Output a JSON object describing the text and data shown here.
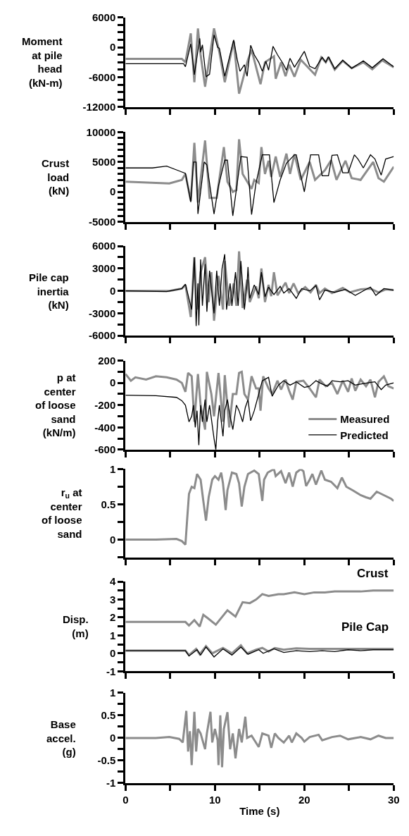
{
  "chart_data": [
    {
      "type": "line",
      "ylabel": "Moment at pile head (kN-m)",
      "xlim": [
        0,
        30
      ],
      "xticks": [
        0,
        {
          "value": 5,
          "label": null
        },
        10,
        {
          "value": 15,
          "label": null
        },
        20,
        {
          "value": 25,
          "label": null
        },
        30
      ],
      "ylim": [
        -12000,
        6000
      ],
      "yticks": [
        6000,
        {
          "value": 4500,
          "label": null
        },
        {
          "value": 3000,
          "label": null
        },
        {
          "value": 1500,
          "label": null
        },
        0,
        {
          "value": -1500,
          "label": null
        },
        {
          "value": -3000,
          "label": null
        },
        {
          "value": -4500,
          "label": null
        },
        -6000,
        {
          "value": -7500,
          "label": null
        },
        {
          "value": -9000,
          "label": null
        },
        {
          "value": -10500,
          "label": null
        },
        -12000
      ],
      "tick_labels": "y",
      "series": [
        {
          "color": "#8c8c8c",
          "x": [
            0,
            6.3,
            6.7,
            7.3,
            7.7,
            8.1,
            8.4,
            8.9,
            9.9,
            10.5,
            11.1,
            12.1,
            12.7,
            13.7,
            14.1,
            15.1,
            15.6,
            16.6,
            16.8,
            17.4,
            17.9,
            18.3,
            18.9,
            19.6,
            21.2,
            21.9,
            22.4,
            22.7,
            23.4,
            24.3,
            25.3,
            26.6,
            27.6,
            28.7,
            30
          ],
          "values": [
            -2300,
            -2300,
            -3000,
            2800,
            -7000,
            3800,
            -1500,
            -7900,
            3800,
            -1000,
            -7000,
            1200,
            -9300,
            -2500,
            -500,
            -7400,
            -3000,
            -1800,
            -6300,
            -3000,
            -5800,
            -3500,
            -5900,
            -2500,
            -5500,
            -2000,
            -3000,
            -2000,
            -4500,
            -2700,
            -4200,
            -3000,
            -4400,
            -2600,
            -4000
          ]
        },
        {
          "color": "#000000",
          "x": [
            0,
            6.5,
            6.7,
            7.3,
            7.7,
            8.3,
            8.4,
            8.6,
            9.0,
            9.4,
            9.9,
            10.3,
            10.5,
            11.1,
            12.1,
            12.5,
            12.8,
            13.3,
            13.6,
            14.0,
            14.4,
            14.9,
            15.3,
            15.7,
            16.0,
            16.5,
            17.0,
            17.6,
            18.0,
            18.4,
            18.9,
            20.0,
            20.6,
            21.2,
            22.0,
            22.4,
            22.7,
            23.4,
            24.3,
            25.3,
            26.6,
            27.6,
            28.8,
            30
          ],
          "values": [
            -3300,
            -3300,
            -3900,
            700,
            -5500,
            1800,
            -1000,
            500,
            -5900,
            -5400,
            2500,
            0,
            -200,
            -5800,
            1500,
            -2500,
            -4800,
            -3500,
            -5800,
            400,
            -1500,
            -3000,
            -4800,
            -2800,
            -4600,
            200,
            -1500,
            -3200,
            -4600,
            -2200,
            -4000,
            -800,
            -3800,
            -4300,
            -2000,
            -3000,
            -1900,
            -4300,
            -2600,
            -4200,
            -2700,
            -4100,
            -2300,
            -3900
          ]
        }
      ]
    },
    {
      "type": "line",
      "ylabel": "Crust load (kN)",
      "xlim": [
        0,
        30
      ],
      "xticks": [
        0,
        {
          "value": 5,
          "label": null
        },
        10,
        {
          "value": 15,
          "label": null
        },
        20,
        {
          "value": 25,
          "label": null
        },
        30
      ],
      "ylim": [
        -5000,
        10000
      ],
      "yticks": [
        10000,
        {
          "value": 9000,
          "label": null
        },
        {
          "value": 8000,
          "label": null
        },
        {
          "value": 7000,
          "label": null
        },
        {
          "value": 6000,
          "label": null
        },
        5000,
        {
          "value": 4000,
          "label": null
        },
        {
          "value": 3000,
          "label": null
        },
        {
          "value": 2000,
          "label": null
        },
        {
          "value": 1000,
          "label": null
        },
        0,
        {
          "value": -1000,
          "label": null
        },
        {
          "value": -2000,
          "label": null
        },
        {
          "value": -3000,
          "label": null
        },
        {
          "value": -4000,
          "label": null
        },
        -5000
      ],
      "tick_labels": "y",
      "series": [
        {
          "color": "#8c8c8c",
          "x": [
            0,
            4.9,
            6.3,
            6.7,
            7.3,
            7.7,
            8.1,
            8.9,
            9.4,
            10.2,
            11.0,
            11.4,
            12.0,
            12.4,
            12.7,
            13.1,
            14.1,
            14.4,
            14.9,
            15.2,
            15.6,
            16.0,
            16.3,
            16.8,
            17.3,
            18.0,
            18.4,
            18.9,
            19.6,
            20.6,
            21.2,
            22.3,
            23.0,
            23.6,
            24.6,
            25.3,
            26.3,
            27.7,
            28.3,
            28.9,
            30
          ],
          "values": [
            1700,
            1400,
            2000,
            3000,
            -1500,
            8200,
            -1800,
            8600,
            -1000,
            -1000,
            7500,
            1700,
            0,
            300,
            8800,
            3000,
            500,
            2000,
            1500,
            7500,
            3000,
            5200,
            2500,
            5900,
            2500,
            6400,
            3000,
            6300,
            2000,
            5000,
            2000,
            3600,
            5300,
            2000,
            5200,
            2300,
            2000,
            5000,
            2300,
            1700,
            4200
          ]
        },
        {
          "color": "#000000",
          "x": [
            0,
            3.0,
            4.6,
            6.0,
            6.7,
            7.3,
            7.6,
            7.9,
            8.1,
            8.8,
            9.1,
            9.9,
            10.4,
            11.1,
            11.4,
            12.0,
            12.9,
            13.6,
            14.1,
            14.6,
            15.3,
            16.1,
            16.6,
            17.3,
            18.0,
            18.9,
            19.1,
            20.0,
            20.7,
            21.6,
            22.0,
            22.7,
            23.1,
            23.7,
            24.3,
            24.9,
            25.6,
            26.0,
            26.6,
            27.4,
            27.9,
            28.6,
            29.1,
            30
          ],
          "values": [
            4000,
            4000,
            4300,
            3500,
            3100,
            -1700,
            5000,
            5000,
            -3700,
            5000,
            4500,
            -3700,
            1000,
            5300,
            5300,
            -4000,
            5900,
            5800,
            -3800,
            1500,
            6200,
            6200,
            -1800,
            2000,
            4800,
            6200,
            6200,
            0,
            6200,
            6200,
            2700,
            2700,
            6100,
            6200,
            3200,
            3200,
            6200,
            5500,
            4000,
            6200,
            5500,
            2800,
            5500,
            5900
          ]
        }
      ]
    },
    {
      "type": "line",
      "ylabel": "Pile cap inertia (kN)",
      "xlim": [
        0,
        30
      ],
      "xticks": [
        0,
        {
          "value": 5,
          "label": null
        },
        10,
        {
          "value": 15,
          "label": null
        },
        20,
        {
          "value": 25,
          "label": null
        },
        30
      ],
      "ylim": [
        -6000,
        6000
      ],
      "yticks": [
        6000,
        {
          "value": 4500,
          "label": null
        },
        3000,
        {
          "value": 1500,
          "label": null
        },
        0,
        {
          "value": -1500,
          "label": null
        },
        -3000,
        {
          "value": -4500,
          "label": null
        },
        -6000
      ],
      "tick_labels": "y",
      "series": [
        {
          "color": "#8c8c8c",
          "x": [
            0,
            4.9,
            6.3,
            6.7,
            7.3,
            7.7,
            8.0,
            8.4,
            8.9,
            9.3,
            9.6,
            9.9,
            10.4,
            10.9,
            11.1,
            11.6,
            12.1,
            12.4,
            12.7,
            13.1,
            13.6,
            13.9,
            14.6,
            14.9,
            15.2,
            15.6,
            16.0,
            16.3,
            16.6,
            17.0,
            17.9,
            18.3,
            18.8,
            19.3,
            20.1,
            20.7,
            21.3,
            21.7,
            22.3,
            23.1,
            24.3,
            25.1,
            26.3,
            27.4,
            28.3,
            29.1,
            30
          ],
          "values": [
            0,
            0,
            300,
            800,
            -3500,
            4500,
            -2500,
            2500,
            4500,
            -1500,
            2500,
            -4000,
            2000,
            -2500,
            4000,
            -2000,
            1000,
            -2000,
            5300,
            -2300,
            1500,
            -1500,
            600,
            -1000,
            3000,
            -1500,
            800,
            -700,
            2500,
            -600,
            1100,
            -300,
            1000,
            -300,
            500,
            -200,
            800,
            -300,
            300,
            -300,
            400,
            -200,
            200,
            300,
            -200,
            200,
            100
          ]
        },
        {
          "color": "#000000",
          "x": [
            0,
            4.6,
            6.3,
            6.7,
            7.4,
            7.7,
            7.9,
            8.1,
            8.2,
            8.4,
            8.6,
            8.9,
            9.1,
            9.4,
            9.7,
            9.9,
            10.2,
            10.5,
            10.8,
            11.1,
            11.3,
            11.7,
            11.9,
            12.3,
            12.6,
            12.9,
            13.3,
            13.6,
            13.7,
            13.9,
            14.4,
            14.9,
            15.2,
            15.6,
            16.0,
            16.6,
            17.3,
            17.7,
            18.3,
            19.1,
            19.7,
            20.6,
            21.3,
            21.7,
            22.3,
            23.4,
            24.6,
            25.7,
            26.9,
            27.4,
            28.0,
            28.9,
            30
          ],
          "values": [
            0,
            -100,
            300,
            900,
            -2500,
            4500,
            -4700,
            1000,
            -4600,
            4200,
            -2000,
            3600,
            -2800,
            2700,
            -800,
            -3000,
            2700,
            -2000,
            3000,
            4900,
            -2500,
            1000,
            -2000,
            2500,
            -2000,
            4000,
            -2500,
            1000,
            3200,
            -1000,
            800,
            -500,
            2500,
            -800,
            500,
            -500,
            600,
            -300,
            300,
            -1000,
            300,
            0,
            700,
            -1200,
            100,
            -200,
            200,
            -600,
            200,
            500,
            -600,
            300,
            100
          ]
        }
      ]
    },
    {
      "type": "line",
      "ylabel": "p at center of loose sand (kN/m)",
      "xlim": [
        0,
        30
      ],
      "xticks": [
        0,
        {
          "value": 5,
          "label": null
        },
        10,
        {
          "value": 15,
          "label": null
        },
        20,
        {
          "value": 25,
          "label": null
        },
        30
      ],
      "ylim": [
        -600,
        200
      ],
      "yticks": [
        200,
        {
          "value": 100,
          "label": null
        },
        0,
        {
          "value": -100,
          "label": null
        },
        -200,
        {
          "value": -300,
          "label": null
        },
        -400,
        {
          "value": -500,
          "label": null
        },
        -600
      ],
      "tick_labels": "y",
      "legend": "bottom right",
      "series": [
        {
          "name": "Measured",
          "color": "#8c8c8c",
          "x": [
            0,
            0.6,
            1.1,
            2.3,
            3.4,
            4.6,
            5.7,
            6.3,
            6.7,
            7.0,
            7.4,
            7.7,
            8.1,
            8.4,
            8.9,
            9.1,
            9.6,
            9.9,
            10.4,
            10.9,
            11.1,
            11.6,
            12.0,
            12.4,
            12.7,
            13.0,
            13.3,
            13.7,
            14.1,
            14.6,
            14.9,
            15.1,
            15.4,
            16.0,
            16.4,
            17.0,
            17.4,
            17.9,
            18.3,
            18.7,
            19.1,
            19.9,
            20.6,
            21.3,
            21.7,
            22.4,
            23.1,
            23.7,
            24.3,
            24.9,
            25.3,
            25.7,
            26.3,
            26.9,
            27.4,
            27.9,
            28.3,
            28.9,
            29.4,
            30
          ],
          "values": [
            80,
            20,
            50,
            30,
            60,
            50,
            30,
            0,
            -80,
            90,
            60,
            -350,
            80,
            -200,
            -420,
            100,
            -100,
            -300,
            90,
            -350,
            70,
            -400,
            -100,
            -100,
            90,
            100,
            -100,
            -150,
            60,
            -50,
            -50,
            -250,
            60,
            -50,
            -100,
            20,
            -60,
            30,
            -70,
            -150,
            10,
            20,
            -50,
            -130,
            30,
            -30,
            0,
            -100,
            20,
            -80,
            40,
            -70,
            30,
            -30,
            30,
            -130,
            10,
            60,
            -30,
            -50
          ]
        },
        {
          "name": "Predicted",
          "color": "#000000",
          "x": [
            0,
            3.4,
            5.7,
            6.3,
            6.7,
            7.1,
            7.4,
            7.6,
            7.8,
            8.0,
            8.2,
            8.4,
            8.6,
            8.9,
            9.1,
            9.4,
            9.9,
            10.1,
            10.3,
            10.5,
            10.9,
            11.1,
            11.4,
            11.7,
            12.0,
            12.4,
            12.7,
            13.1,
            13.4,
            13.7,
            14.0,
            14.4,
            14.9,
            15.3,
            16.0,
            16.4,
            17.1,
            17.7,
            18.4,
            19.1,
            20.0,
            20.6,
            21.3,
            22.0,
            22.6,
            23.1,
            24.0,
            24.9,
            25.7,
            26.3,
            27.1,
            27.9,
            28.6,
            29.1,
            30
          ],
          "values": [
            -110,
            -115,
            -130,
            -160,
            -200,
            -350,
            -300,
            -200,
            -400,
            -250,
            -560,
            -200,
            -350,
            -150,
            -350,
            -200,
            -500,
            -600,
            -350,
            -200,
            -480,
            -250,
            -150,
            -300,
            -420,
            -200,
            -250,
            -350,
            -220,
            -150,
            -340,
            -250,
            -100,
            20,
            50,
            -120,
            -20,
            20,
            -20,
            10,
            -40,
            -30,
            20,
            -10,
            -30,
            20,
            10,
            20,
            -20,
            -10,
            0,
            10,
            -60,
            -20,
            0
          ]
        }
      ]
    },
    {
      "type": "line",
      "ylabel": "r$_{u}$ at center of loose sand",
      "xlim": [
        0,
        30
      ],
      "xticks": [
        0,
        {
          "value": 5,
          "label": null
        },
        10,
        {
          "value": 15,
          "label": null
        },
        20,
        {
          "value": 25,
          "label": null
        },
        30
      ],
      "ylim": [
        -0.25,
        1
      ],
      "yticks": [
        1,
        {
          "value": 0.75,
          "label": null
        },
        0.5,
        {
          "value": 0.25,
          "label": null
        },
        0,
        {
          "value": -0.25,
          "label": null
        }
      ],
      "tick_labels": "y",
      "series": [
        {
          "color": "#8c8c8c",
          "x": [
            0,
            3.4,
            5.7,
            6.3,
            6.7,
            6.9,
            7.1,
            7.4,
            7.7,
            8.0,
            8.4,
            8.7,
            9.0,
            9.3,
            9.7,
            10.0,
            10.4,
            10.7,
            10.9,
            11.2,
            11.4,
            11.9,
            12.4,
            12.7,
            13.0,
            13.3,
            13.7,
            14.4,
            14.9,
            15.3,
            15.5,
            15.9,
            16.6,
            16.8,
            17.4,
            17.9,
            18.3,
            18.7,
            19.1,
            19.6,
            19.9,
            20.2,
            20.6,
            20.9,
            21.3,
            21.9,
            22.3,
            23.0,
            23.7,
            24.2,
            24.7,
            25.4,
            26.3,
            26.9,
            27.4,
            28.1,
            28.9,
            29.7,
            30
          ],
          "values": [
            0,
            0,
            0.01,
            -0.02,
            -0.07,
            0.3,
            0.65,
            0.75,
            0.73,
            0.93,
            0.85,
            0.55,
            0.27,
            0.6,
            0.85,
            0.9,
            0.85,
            0.95,
            0.8,
            0.42,
            0.7,
            0.95,
            0.93,
            0.8,
            0.47,
            0.75,
            0.93,
            0.98,
            0.93,
            0.55,
            0.85,
            0.95,
            1.0,
            0.9,
            0.97,
            0.8,
            0.95,
            0.75,
            0.95,
            1.0,
            0.97,
            0.76,
            0.85,
            0.93,
            0.78,
            0.98,
            0.85,
            0.82,
            0.73,
            0.88,
            0.75,
            0.7,
            0.63,
            0.6,
            0.58,
            0.68,
            0.63,
            0.58,
            0.55
          ]
        }
      ]
    },
    {
      "type": "line",
      "ylabel": "Disp. (m)",
      "xlim": [
        0,
        30
      ],
      "xticks": [
        0,
        {
          "value": 5,
          "label": null
        },
        10,
        {
          "value": 15,
          "label": null
        },
        20,
        {
          "value": 25,
          "label": null
        },
        30
      ],
      "ylim": [
        -1,
        4
      ],
      "yticks": [
        4,
        {
          "value": 3.5,
          "label": null
        },
        3,
        {
          "value": 2.5,
          "label": null
        },
        2,
        {
          "value": 1.5,
          "label": null
        },
        1,
        {
          "value": 0.5,
          "label": null
        },
        0,
        {
          "value": -0.5,
          "label": null
        },
        -1
      ],
      "tick_labels": "y",
      "annotations": [
        "Crust",
        "Pile Cap"
      ],
      "series": [
        {
          "color": "#8c8c8c",
          "x": [
            0,
            6.7,
            7.1,
            7.7,
            8.3,
            8.7,
            9.1,
            10.1,
            11.4,
            12.3,
            13.1,
            13.9,
            14.6,
            15.3,
            16.0,
            17.1,
            17.7,
            18.9,
            20.0,
            21.1,
            22.3,
            23.4,
            24.9,
            26.3,
            27.7,
            30
          ],
          "values": [
            1.75,
            1.75,
            1.55,
            1.85,
            1.5,
            2.15,
            2.0,
            1.6,
            2.4,
            2.05,
            2.85,
            2.8,
            3.0,
            3.3,
            3.2,
            3.3,
            3.3,
            3.4,
            3.3,
            3.4,
            3.4,
            3.45,
            3.45,
            3.45,
            3.5,
            3.5
          ]
        },
        {
          "color": "#8c8c8c",
          "x": [
            0,
            6.7,
            7.1,
            7.9,
            8.3,
            9.0,
            9.7,
            10.9,
            11.9,
            12.9,
            13.6,
            14.6,
            15.3,
            16.0,
            16.7,
            17.7,
            19.1,
            20.6,
            23.4,
            26.3,
            30
          ],
          "values": [
            0.15,
            0.15,
            -0.1,
            0.25,
            -0.05,
            0.4,
            0.0,
            0.3,
            0.0,
            0.45,
            0.0,
            0.2,
            0.3,
            0.1,
            0.3,
            0.2,
            0.28,
            0.25,
            0.25,
            0.25,
            0.25
          ]
        },
        {
          "color": "#000000",
          "x": [
            0,
            6.7,
            7.1,
            8.0,
            8.4,
            9.0,
            9.9,
            10.9,
            11.9,
            12.9,
            13.7,
            14.9,
            15.4,
            16.6,
            17.7,
            19.1,
            20.6,
            22.0,
            23.4,
            24.9,
            26.3,
            27.7,
            30
          ],
          "values": [
            0.15,
            0.15,
            -0.15,
            0.2,
            -0.1,
            0.35,
            -0.2,
            0.25,
            -0.1,
            0.35,
            -0.05,
            0.2,
            0.0,
            0.25,
            0.05,
            0.15,
            0.1,
            0.15,
            0.1,
            0.2,
            0.15,
            0.2,
            0.2
          ]
        }
      ]
    },
    {
      "type": "line",
      "ylabel": "Base accel. (g)",
      "xlabel": "Time (s)",
      "xlim": [
        0,
        30
      ],
      "xticks": [
        0,
        {
          "value": 5,
          "label": null
        },
        10,
        {
          "value": 15,
          "label": null
        },
        20,
        {
          "value": 25,
          "label": null
        },
        30
      ],
      "ylim": [
        -1,
        1
      ],
      "yticks": [
        1,
        {
          "value": 0.75,
          "label": null
        },
        0.5,
        {
          "value": 0.25,
          "label": null
        },
        0,
        {
          "value": -0.25,
          "label": null
        },
        -0.5,
        {
          "value": -0.75,
          "label": null
        },
        -1
      ],
      "series": [
        {
          "color": "#8c8c8c",
          "x": [
            0,
            3.4,
            4.9,
            6.0,
            6.4,
            6.8,
            7.0,
            7.2,
            7.4,
            7.7,
            7.9,
            8.1,
            8.4,
            8.9,
            9.1,
            9.5,
            9.7,
            10.0,
            10.3,
            10.4,
            10.6,
            10.8,
            11.0,
            11.4,
            11.7,
            12.0,
            12.3,
            12.7,
            13.0,
            13.4,
            13.6,
            14.1,
            14.9,
            15.3,
            16.0,
            16.3,
            16.7,
            17.1,
            17.7,
            18.3,
            18.6,
            19.1,
            19.7,
            20.0,
            20.6,
            21.6,
            22.0,
            23.1,
            24.0,
            24.9,
            26.3,
            27.4,
            28.3,
            29.1,
            30
          ],
          "values": [
            0,
            0,
            0.02,
            -0.02,
            -0.1,
            0.6,
            -0.3,
            0.15,
            -0.6,
            0.58,
            -0.3,
            0.2,
            0.1,
            -0.25,
            0.1,
            0.58,
            -0.1,
            0.2,
            -0.05,
            -0.6,
            0.5,
            -0.65,
            0.2,
            0.57,
            -0.25,
            0.1,
            -0.45,
            0.2,
            -0.1,
            0.47,
            0.0,
            0.05,
            -0.2,
            0.1,
            0.05,
            -0.22,
            0.1,
            0.0,
            -0.1,
            0.05,
            -0.1,
            0.1,
            0.0,
            -0.08,
            0.02,
            0.07,
            -0.05,
            0.02,
            0.05,
            -0.03,
            0.02,
            -0.03,
            0.05,
            0.0,
            0.0
          ]
        }
      ]
    }
  ]
}
